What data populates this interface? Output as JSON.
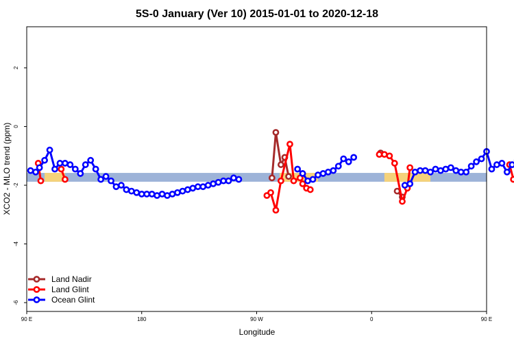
{
  "chart_data": {
    "type": "line",
    "title": "5S-0 January (Ver 10)   2015-01-01 to 2020-12-18",
    "xlabel": "Longitude",
    "ylabel": "XCO2 - MLO trend (ppm)",
    "xlim": [
      90,
      450
    ],
    "ylim": [
      -6.3,
      3.4
    ],
    "x_ticks": [
      {
        "value": 90,
        "label": "90 E"
      },
      {
        "value": 180,
        "label": "180"
      },
      {
        "value": 270,
        "label": "90 W"
      },
      {
        "value": 360,
        "label": "0"
      },
      {
        "value": 450,
        "label": "90 E"
      },
      {
        "value": 540,
        "label": "180"
      }
    ],
    "y_ticks": [
      {
        "value": 2,
        "label": "2"
      },
      {
        "value": 0,
        "label": "0"
      },
      {
        "value": -2,
        "label": "-2"
      },
      {
        "value": -4,
        "label": "-4"
      },
      {
        "value": -6,
        "label": "-6"
      }
    ],
    "legend_position": "bottom-left",
    "background_band": {
      "y_low": -1.88,
      "y_high": -1.58,
      "color": "#9db3d8"
    },
    "land_segments": [
      {
        "x0": 104,
        "x1": 120
      },
      {
        "x0": 288,
        "x1": 318
      },
      {
        "x0": 370,
        "x1": 406
      },
      {
        "x0": 484,
        "x1": 502
      }
    ],
    "land_color": "#f5d27a",
    "series": [
      {
        "name": "Land Nadir",
        "color": "#a52a2a",
        "points": [
          [
            282,
            -1.75
          ],
          [
            285,
            -0.2
          ],
          [
            289,
            -1.3
          ],
          [
            292,
            -1.05
          ],
          [
            295,
            -1.7
          ],
          [
            367,
            -0.9
          ],
          [
            380,
            -2.2
          ],
          [
            384,
            -2.4
          ]
        ]
      },
      {
        "name": "Land Glint",
        "color": "#ff0000",
        "points": [
          [
            99,
            -1.25
          ],
          [
            101,
            -1.85
          ],
          [
            117,
            -1.45
          ],
          [
            120,
            -1.8
          ],
          [
            278,
            -2.35
          ],
          [
            281,
            -2.25
          ],
          [
            285,
            -2.85
          ],
          [
            289,
            -1.85
          ],
          [
            296,
            -0.6
          ],
          [
            299,
            -1.85
          ],
          [
            304,
            -1.75
          ],
          [
            306,
            -1.95
          ],
          [
            309,
            -2.1
          ],
          [
            312,
            -2.15
          ],
          [
            366,
            -0.95
          ],
          [
            370,
            -0.95
          ],
          [
            374,
            -1.0
          ],
          [
            378,
            -1.25
          ],
          [
            384,
            -2.55
          ],
          [
            388,
            -2.1
          ],
          [
            390,
            -1.4
          ],
          [
            468,
            -1.3
          ],
          [
            471,
            -1.8
          ],
          [
            478,
            -1.15
          ],
          [
            494,
            -1.45
          ],
          [
            498,
            -1.8
          ]
        ]
      },
      {
        "name": "Ocean Glint",
        "color": "#0000ff",
        "points": [
          [
            93,
            -1.5
          ],
          [
            97,
            -1.55
          ],
          [
            100,
            -1.4
          ],
          [
            104,
            -1.15
          ],
          [
            108,
            -0.8
          ],
          [
            112,
            -1.45
          ],
          [
            116,
            -1.25
          ],
          [
            120,
            -1.25
          ],
          [
            124,
            -1.3
          ],
          [
            128,
            -1.45
          ],
          [
            132,
            -1.6
          ],
          [
            136,
            -1.3
          ],
          [
            140,
            -1.15
          ],
          [
            144,
            -1.45
          ],
          [
            148,
            -1.8
          ],
          [
            152,
            -1.7
          ],
          [
            156,
            -1.85
          ],
          [
            160,
            -2.05
          ],
          [
            164,
            -2.0
          ],
          [
            168,
            -2.15
          ],
          [
            172,
            -2.2
          ],
          [
            176,
            -2.25
          ],
          [
            180,
            -2.3
          ],
          [
            184,
            -2.3
          ],
          [
            188,
            -2.3
          ],
          [
            192,
            -2.35
          ],
          [
            196,
            -2.3
          ],
          [
            200,
            -2.35
          ],
          [
            204,
            -2.3
          ],
          [
            208,
            -2.25
          ],
          [
            212,
            -2.2
          ],
          [
            216,
            -2.15
          ],
          [
            220,
            -2.1
          ],
          [
            224,
            -2.05
          ],
          [
            228,
            -2.05
          ],
          [
            232,
            -2.0
          ],
          [
            236,
            -1.95
          ],
          [
            240,
            -1.9
          ],
          [
            244,
            -1.85
          ],
          [
            248,
            -1.85
          ],
          [
            252,
            -1.75
          ],
          [
            256,
            -1.8
          ],
          [
            302,
            -1.45
          ],
          [
            306,
            -1.6
          ],
          [
            310,
            -1.85
          ],
          [
            314,
            -1.8
          ],
          [
            318,
            -1.65
          ],
          [
            322,
            -1.6
          ],
          [
            326,
            -1.55
          ],
          [
            330,
            -1.5
          ],
          [
            334,
            -1.35
          ],
          [
            338,
            -1.1
          ],
          [
            342,
            -1.2
          ],
          [
            346,
            -1.05
          ],
          [
            386,
            -2.0
          ],
          [
            390,
            -1.95
          ],
          [
            394,
            -1.55
          ],
          [
            398,
            -1.5
          ],
          [
            402,
            -1.5
          ],
          [
            406,
            -1.55
          ],
          [
            410,
            -1.45
          ],
          [
            414,
            -1.5
          ],
          [
            418,
            -1.45
          ],
          [
            422,
            -1.4
          ],
          [
            426,
            -1.5
          ],
          [
            430,
            -1.55
          ],
          [
            434,
            -1.55
          ],
          [
            438,
            -1.35
          ],
          [
            442,
            -1.2
          ],
          [
            446,
            -1.1
          ],
          [
            450,
            -0.85
          ],
          [
            454,
            -1.45
          ],
          [
            458,
            -1.3
          ],
          [
            462,
            -1.25
          ],
          [
            466,
            -1.55
          ],
          [
            470,
            -1.3
          ],
          [
            474,
            -1.15
          ],
          [
            478,
            -1.45
          ],
          [
            482,
            -1.75
          ],
          [
            486,
            -1.7
          ],
          [
            490,
            -1.85
          ],
          [
            494,
            -2.1
          ],
          [
            498,
            -2.05
          ]
        ]
      }
    ]
  }
}
